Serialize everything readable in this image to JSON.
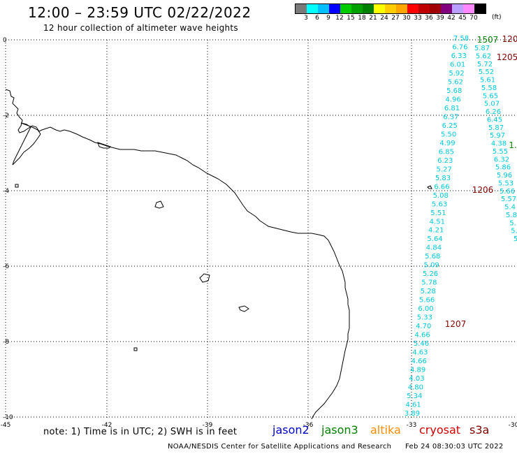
{
  "header": {
    "title": "12:00 – 23:59 UTC 02/22/2022",
    "subtitle": "12 hour collection of altimeter wave heights"
  },
  "scale": {
    "colors": [
      "#7a7a7a",
      "#00ffff",
      "#00bfff",
      "#0000ff",
      "#00cc00",
      "#00a000",
      "#008000",
      "#ffff00",
      "#ffcc00",
      "#ffa500",
      "#ff0000",
      "#c00000",
      "#a00000",
      "#800080",
      "#b9a0ff",
      "#ff88ff",
      "#000000"
    ],
    "labels": [
      "3",
      "6",
      "9",
      "12",
      "15",
      "18",
      "21",
      "24",
      "27",
      "30",
      "33",
      "36",
      "39",
      "42",
      "45",
      "70"
    ],
    "unit": "(ft)"
  },
  "axes": {
    "lon_labels": [
      "-45",
      "-42",
      "-39",
      "-36",
      "-33",
      "-30"
    ],
    "lat_labels": [
      "0",
      "-2",
      "-4",
      "-6",
      "-8",
      "-10"
    ]
  },
  "tracks": [
    {
      "name": "track-a",
      "color": "#00c8d8",
      "values": [
        "7.58",
        "6.76",
        "6.33",
        "6.01",
        "5.92",
        "5.62",
        "5.68",
        "4.96",
        "6.81",
        "6.37",
        "6.25",
        "5.50",
        "4.99",
        "6.85",
        "6.23",
        "5.27",
        "5.83",
        "6.66",
        "5.08",
        "5.63",
        "5.51",
        "4.51",
        "4.21",
        "5.64",
        "4.84",
        "5.68",
        "5.09",
        "5.26",
        "5.78",
        "5.28",
        "5.66",
        "6.00",
        "5.33",
        "4.70",
        "4.66",
        "5.46",
        "4.63",
        "4.66",
        "4.89",
        "4.03",
        "4.80",
        "5.34",
        "4.61",
        "3.89"
      ]
    },
    {
      "name": "track-b",
      "color": "#00c8d8",
      "values": [
        "5.87",
        "5.62",
        "5.72",
        "5.52",
        "5.61",
        "5.58",
        "5.65",
        "5.07",
        "6.26",
        "6.45",
        "5.87",
        "5.97",
        "4.38",
        "5.55",
        "6.32",
        "5.86",
        "5.96",
        "5.53",
        "5.66",
        "5.57",
        "5.4",
        "5.8",
        "5.",
        "5.",
        "5"
      ]
    }
  ],
  "markers": [
    {
      "text": "1507",
      "color": "#008000"
    },
    {
      "text": "1205",
      "color": "#800000"
    },
    {
      "text": "120",
      "color": "#800000"
    },
    {
      "text": "1.",
      "color": "#008000"
    },
    {
      "text": "1206",
      "color": "#800000"
    },
    {
      "text": "1207",
      "color": "#800000"
    }
  ],
  "footer": {
    "note": "note: 1) Time is in UTC; 2) SWH is in feet",
    "satellites": [
      {
        "name": "jason2",
        "color": "#0000cc"
      },
      {
        "name": "jason3",
        "color": "#008000"
      },
      {
        "name": "altika",
        "color": "#ff8c00"
      },
      {
        "name": "cryosat",
        "color": "#cc0000"
      },
      {
        "name": "s3a",
        "color": "#800000"
      }
    ],
    "agency": "NOAA/NESDIS Center for Satellite Applications and Research",
    "timestamp": "Feb 24 08:30:03 UTC 2022"
  }
}
